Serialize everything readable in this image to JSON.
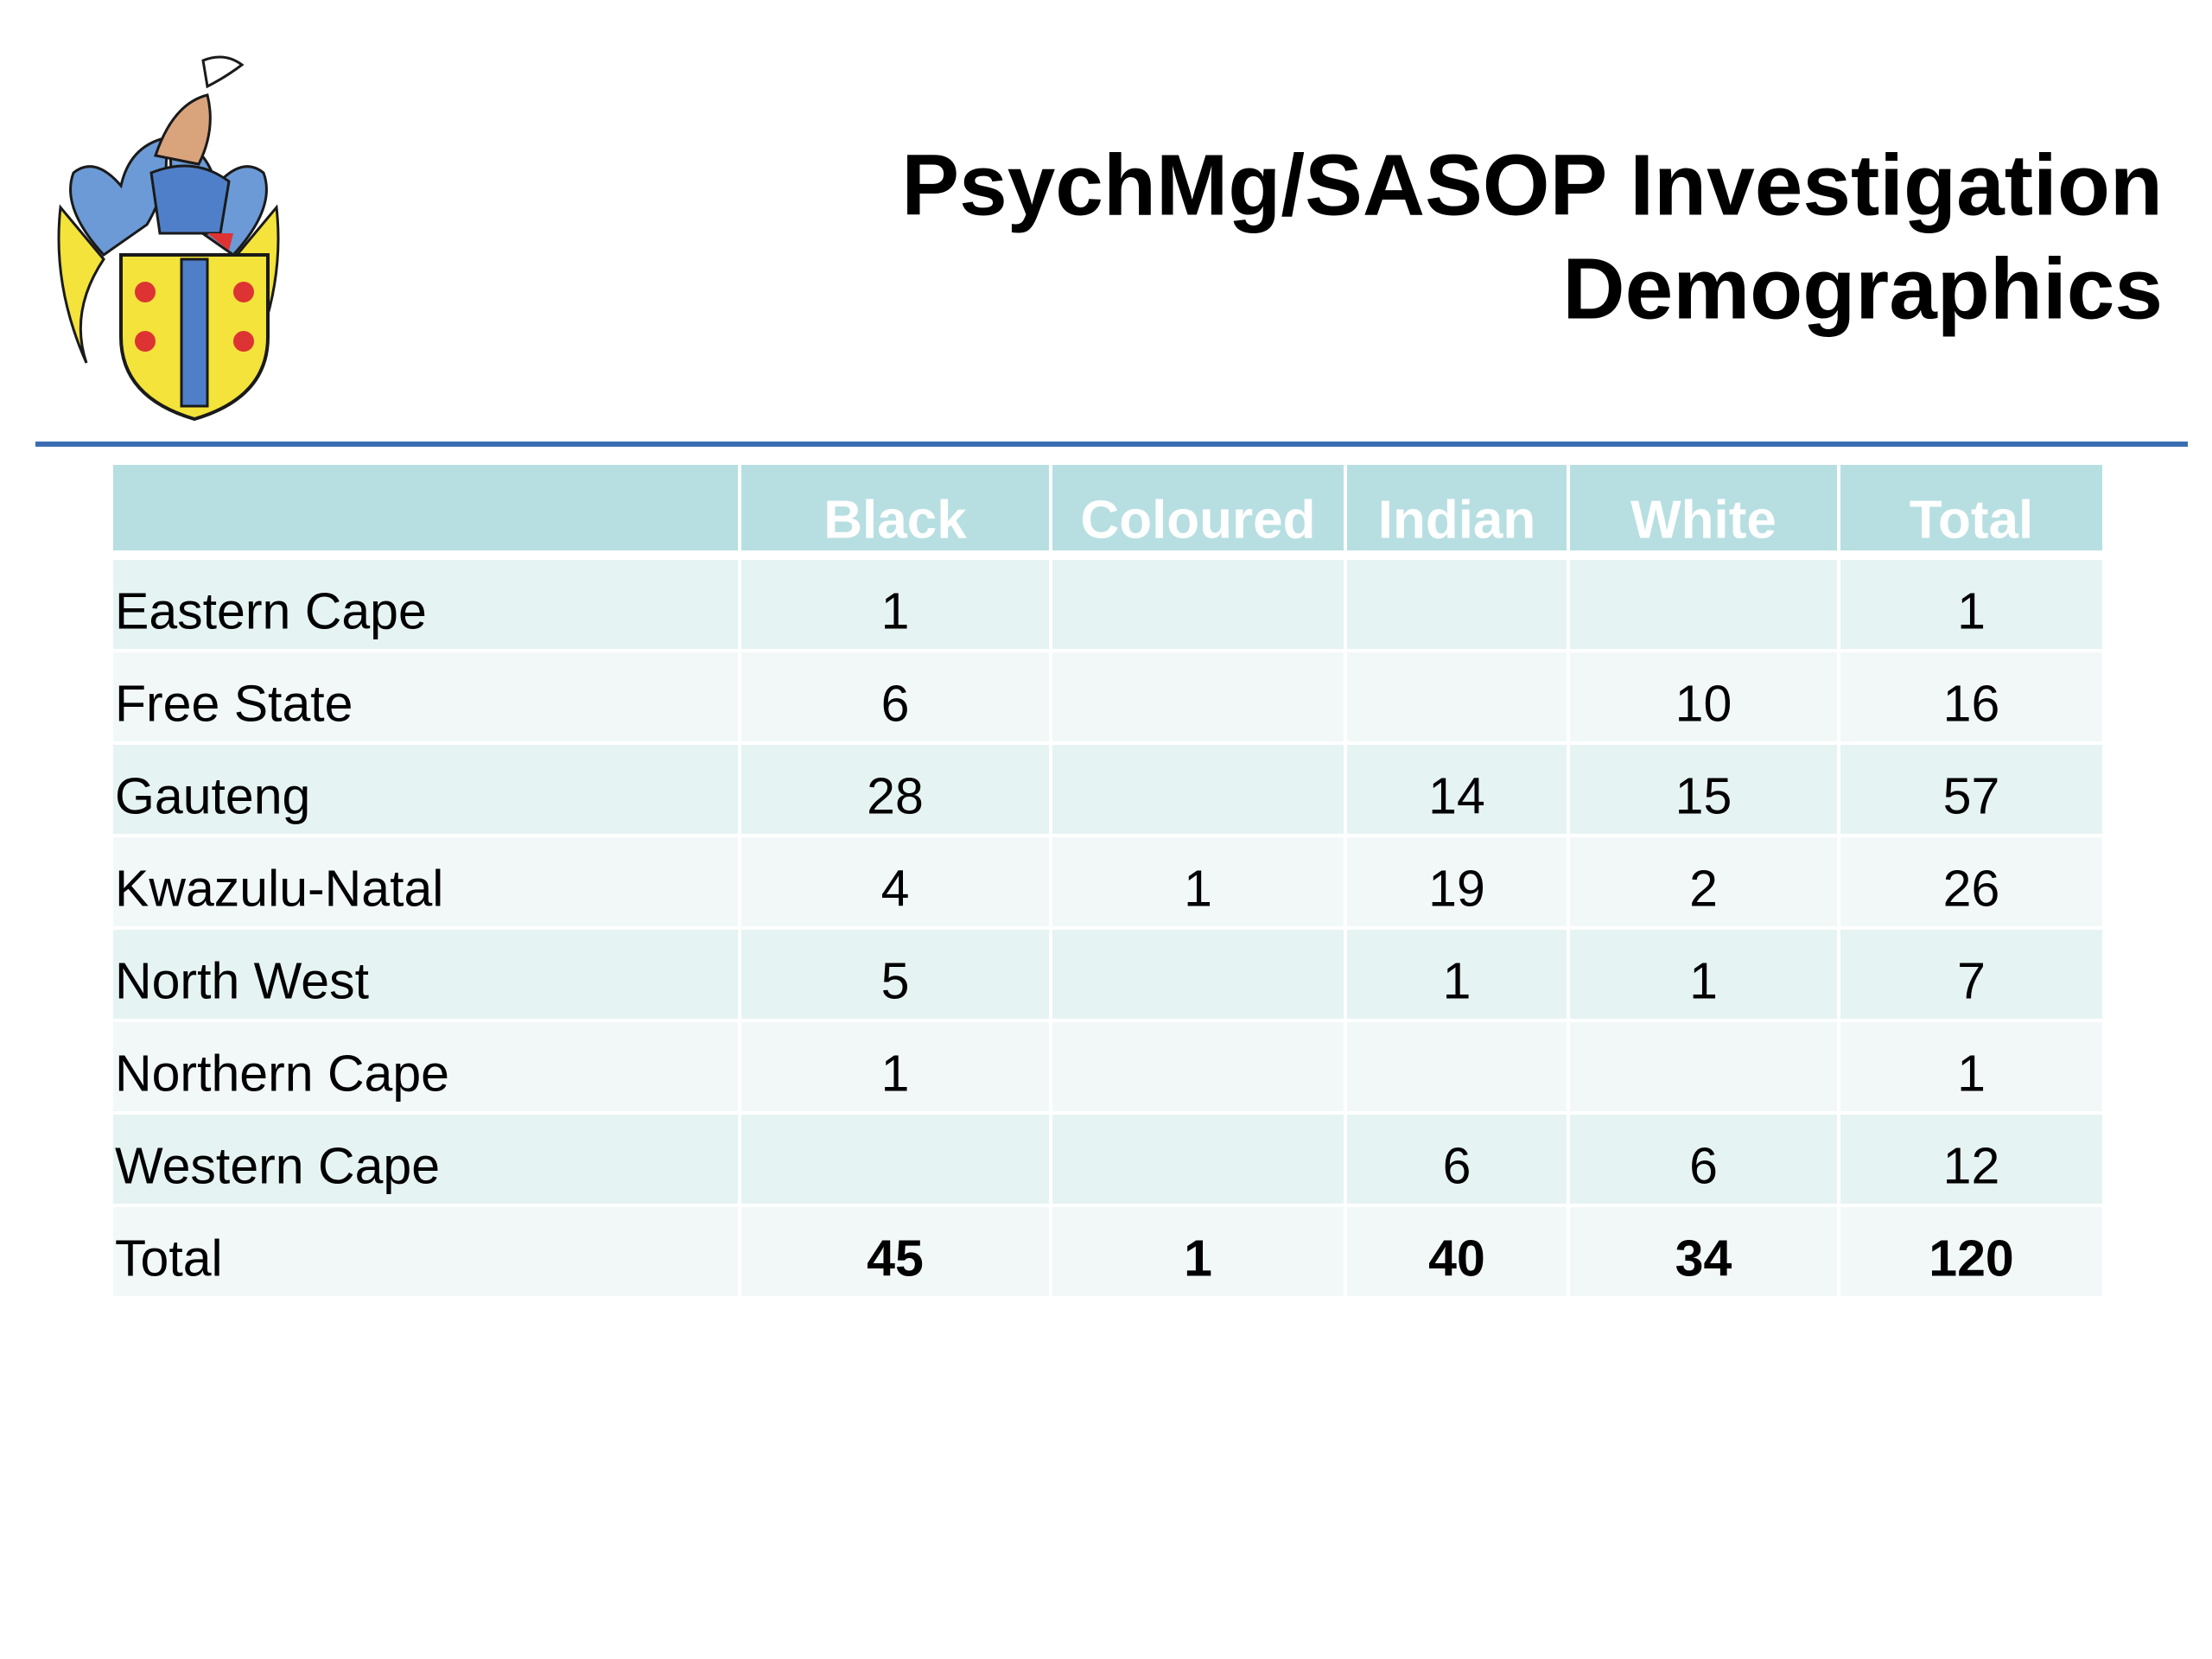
{
  "header": {
    "title_lines": [
      "PsychMg/SASOP Investigation",
      "Demographics"
    ]
  },
  "table": {
    "columns": [
      "Black",
      "Coloured",
      "Indian",
      "White",
      "Total"
    ],
    "rows": [
      {
        "label": "Eastern Cape",
        "cells": [
          1,
          null,
          null,
          null,
          1
        ]
      },
      {
        "label": "Free State",
        "cells": [
          6,
          null,
          null,
          10,
          16
        ]
      },
      {
        "label": "Gauteng",
        "cells": [
          28,
          null,
          14,
          15,
          57
        ]
      },
      {
        "label": "Kwazulu-Natal",
        "cells": [
          4,
          1,
          19,
          2,
          26
        ]
      },
      {
        "label": "North West",
        "cells": [
          5,
          null,
          1,
          1,
          7
        ]
      },
      {
        "label": "Northern Cape",
        "cells": [
          1,
          null,
          null,
          null,
          1
        ]
      },
      {
        "label": "Western Cape",
        "cells": [
          null,
          null,
          6,
          6,
          12
        ]
      },
      {
        "label": "Total",
        "cells": [
          45,
          1,
          40,
          34,
          120
        ]
      }
    ]
  }
}
